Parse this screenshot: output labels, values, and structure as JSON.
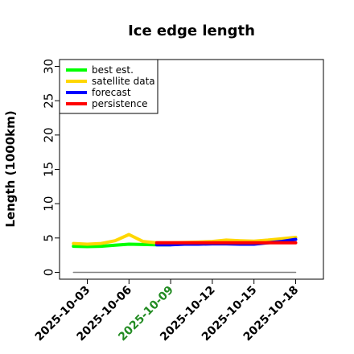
{
  "chart_data": {
    "type": "line",
    "title": "Ice edge length",
    "ylabel": "Length (1000km)",
    "xlabel": "",
    "ylim": [
      -1,
      31
    ],
    "xlim": [
      "2025-10-01",
      "2025-10-20"
    ],
    "yticks": [
      0,
      5,
      10,
      15,
      20,
      25,
      30
    ],
    "xticks": [
      {
        "label": "2025-10-03",
        "date": "2025-10-03",
        "color": "#000000"
      },
      {
        "label": "2025-10-06",
        "date": "2025-10-06",
        "color": "#000000"
      },
      {
        "label": "2025-10-09",
        "date": "2025-10-09",
        "color": "#228b22"
      },
      {
        "label": "2025-10-12",
        "date": "2025-10-12",
        "color": "#000000"
      },
      {
        "label": "2025-10-15",
        "date": "2025-10-15",
        "color": "#000000"
      },
      {
        "label": "2025-10-18",
        "date": "2025-10-18",
        "color": "#000000"
      }
    ],
    "legend_placement": "top-left",
    "series": [
      {
        "name": "best est.",
        "color": "#00ff00",
        "x": [
          "2025-10-02",
          "2025-10-03",
          "2025-10-04",
          "2025-10-05",
          "2025-10-06",
          "2025-10-07",
          "2025-10-08",
          "2025-10-09"
        ],
        "y": [
          3.8,
          3.75,
          3.8,
          3.95,
          4.1,
          4.05,
          4.0,
          4.0
        ]
      },
      {
        "name": "satellite data",
        "color": "#ffd700",
        "x": [
          "2025-10-02",
          "2025-10-03",
          "2025-10-04",
          "2025-10-05",
          "2025-10-06",
          "2025-10-07",
          "2025-10-08",
          "2025-10-09",
          "2025-10-10",
          "2025-10-11",
          "2025-10-12",
          "2025-10-13",
          "2025-10-14",
          "2025-10-15",
          "2025-10-16",
          "2025-10-17",
          "2025-10-18"
        ],
        "y": [
          4.2,
          4.1,
          4.2,
          4.6,
          5.5,
          4.5,
          4.3,
          4.3,
          4.35,
          4.4,
          4.5,
          4.7,
          4.6,
          4.55,
          4.7,
          4.9,
          5.1
        ]
      },
      {
        "name": "forecast",
        "color": "#0000ff",
        "x": [
          "2025-10-08",
          "2025-10-09",
          "2025-10-10",
          "2025-10-11",
          "2025-10-12",
          "2025-10-13",
          "2025-10-14",
          "2025-10-15",
          "2025-10-16",
          "2025-10-17",
          "2025-10-18"
        ],
        "y": [
          4.0,
          4.0,
          4.1,
          4.1,
          4.15,
          4.15,
          4.1,
          4.1,
          4.3,
          4.5,
          4.8
        ]
      },
      {
        "name": "persistence",
        "color": "#ff0000",
        "x": [
          "2025-10-08",
          "2025-10-18"
        ],
        "y": [
          4.3,
          4.3
        ]
      },
      {
        "name": "",
        "color": "#808080",
        "x": [
          "2025-10-02",
          "2025-10-18"
        ],
        "y": [
          0.0,
          0.0
        ]
      }
    ]
  }
}
